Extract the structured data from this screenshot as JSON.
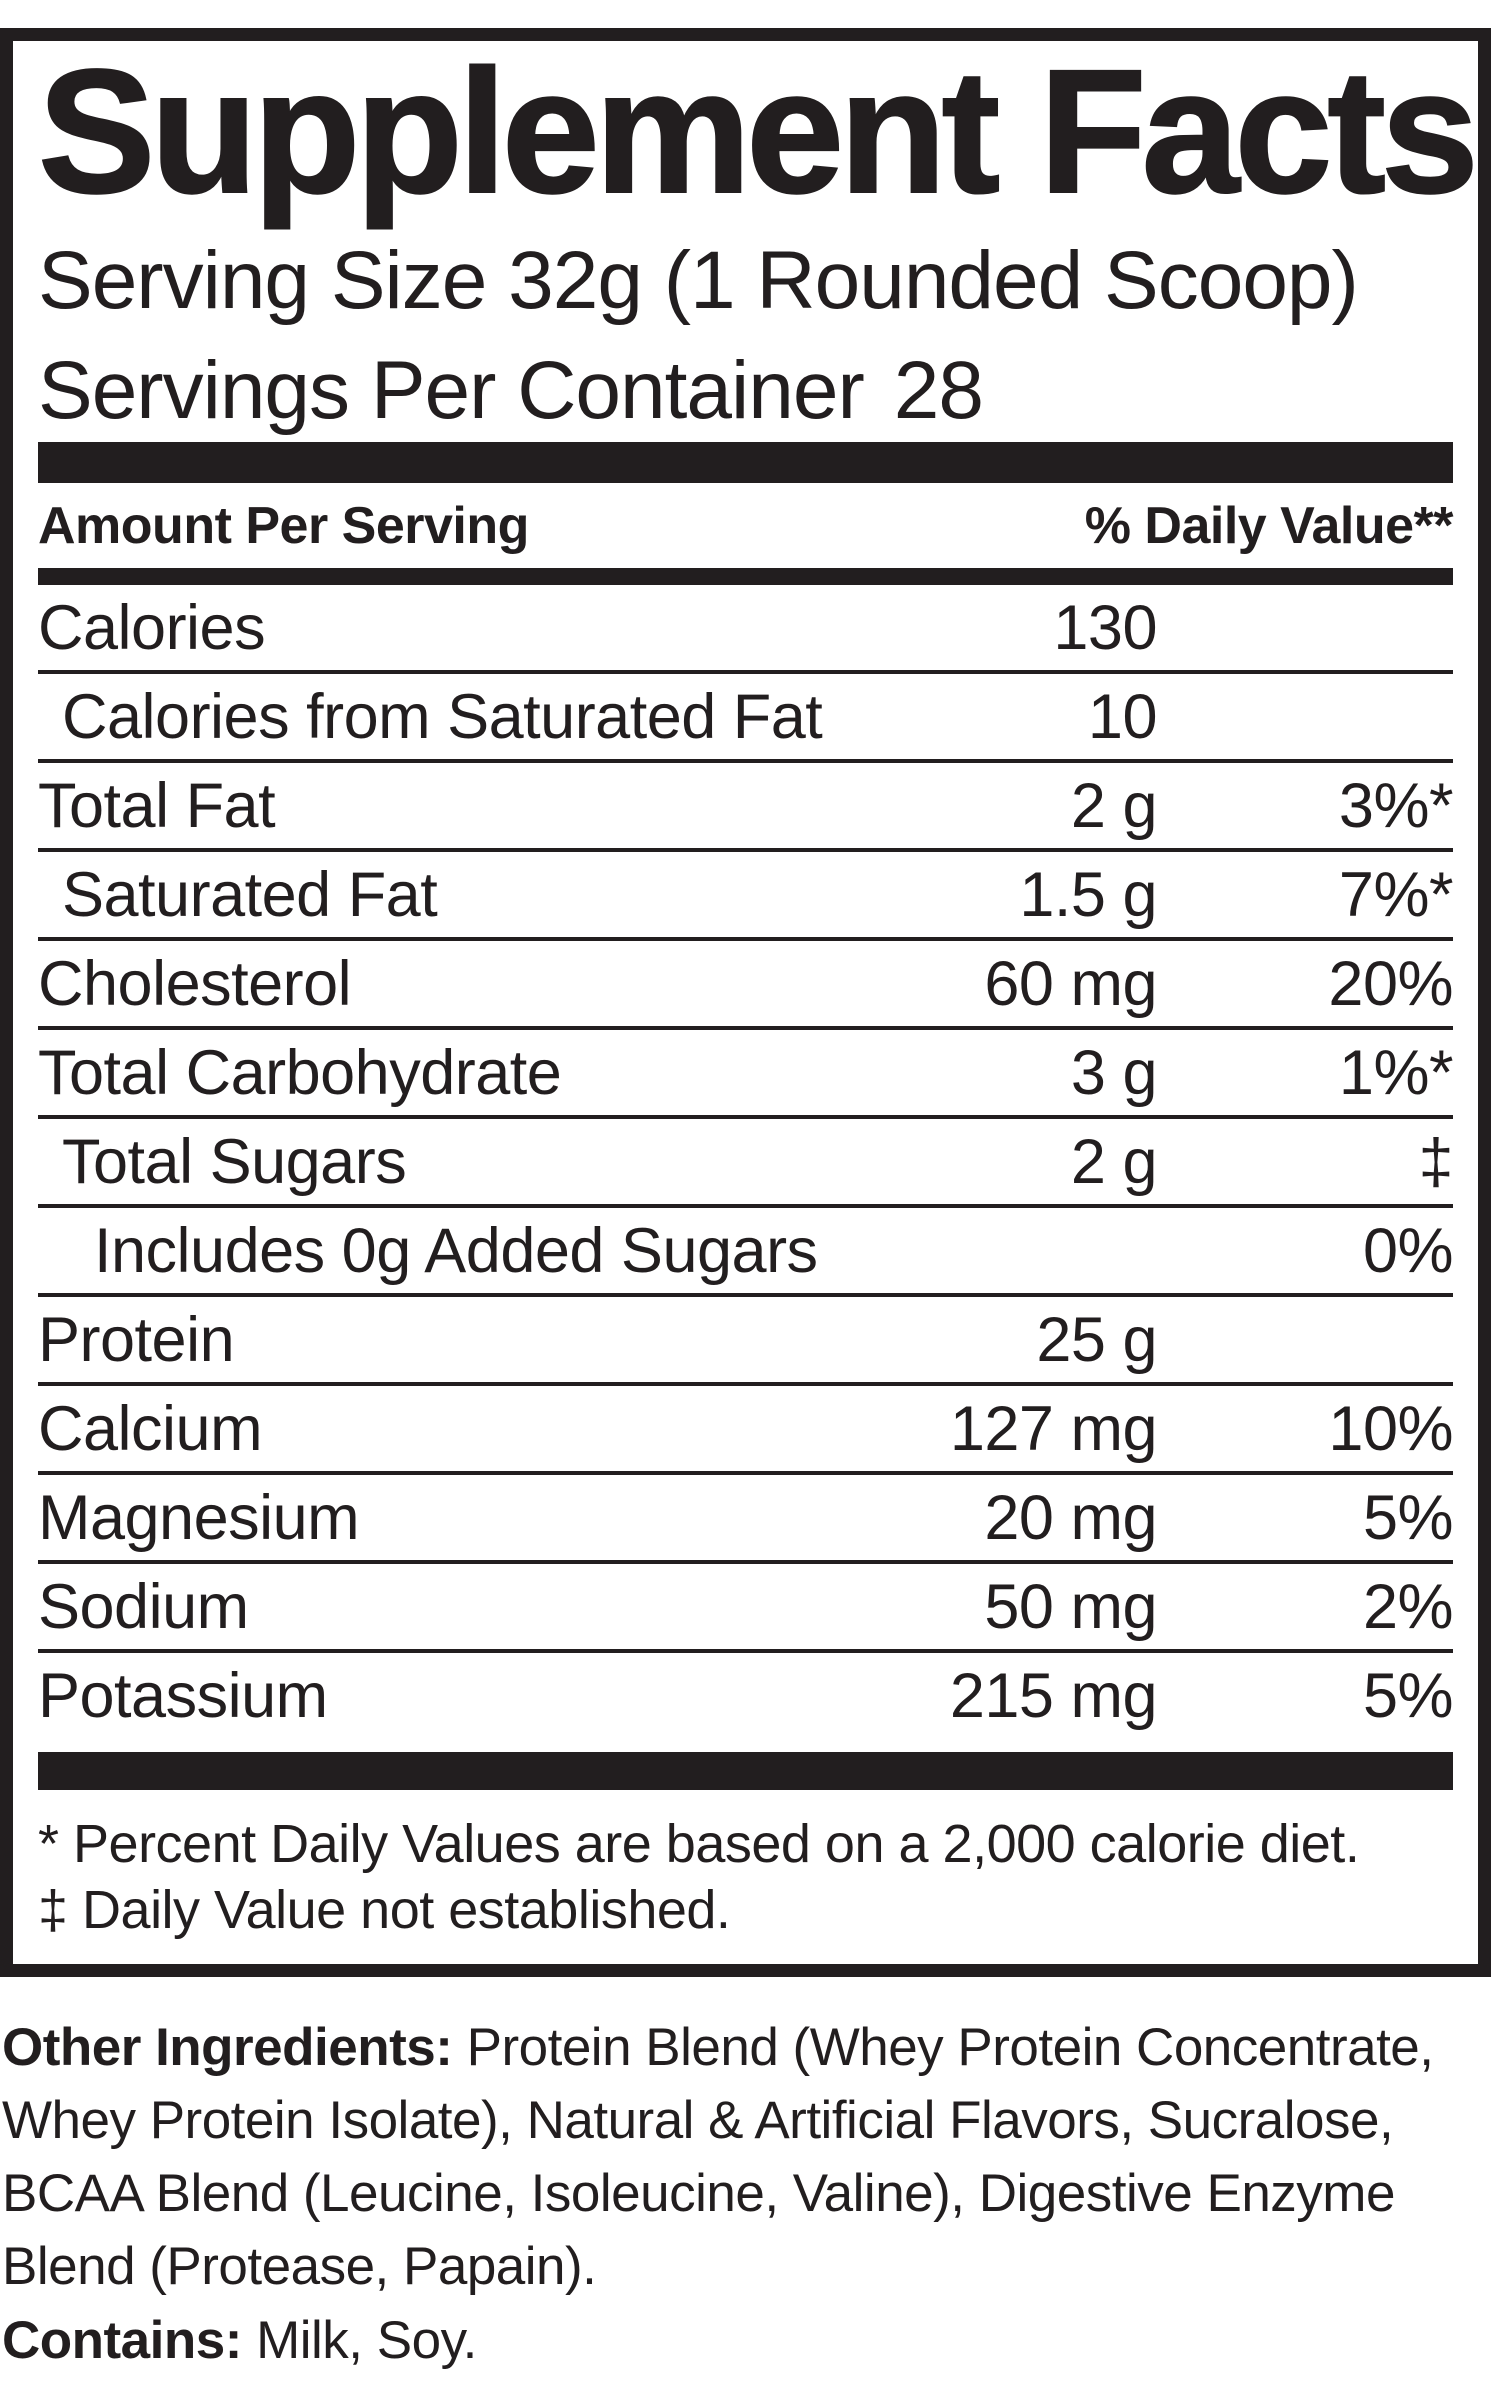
{
  "label": {
    "title": "Supplement Facts",
    "serving_size": "Serving Size 32g (1 Rounded Scoop)",
    "servings_per_container": {
      "label": "Servings Per Container",
      "value": "28"
    },
    "columns": {
      "amount_header": "Amount Per Serving",
      "daily_value_header": "% Daily Value**"
    },
    "rows": [
      {
        "name": "Calories",
        "amount": "130",
        "dv": "",
        "indent": 0
      },
      {
        "name": "Calories from Saturated Fat",
        "amount": "10",
        "dv": "",
        "indent": 1
      },
      {
        "name": "Total Fat",
        "amount": "2 g",
        "dv": "3%*",
        "indent": 0
      },
      {
        "name": "Saturated Fat",
        "amount": "1.5 g",
        "dv": "7%*",
        "indent": 1
      },
      {
        "name": "Cholesterol",
        "amount": "60 mg",
        "dv": "20%",
        "indent": 0
      },
      {
        "name": "Total Carbohydrate",
        "amount": "3 g",
        "dv": "1%*",
        "indent": 0
      },
      {
        "name": "Total Sugars",
        "amount": "2 g",
        "dv": "‡",
        "indent": 1
      },
      {
        "name": "Includes 0g Added Sugars",
        "amount": "",
        "dv": "0%",
        "indent": 2
      },
      {
        "name": "Protein",
        "amount": "25 g",
        "dv": "",
        "indent": 0
      },
      {
        "name": "Calcium",
        "amount": "127 mg",
        "dv": "10%",
        "indent": 0
      },
      {
        "name": "Magnesium",
        "amount": "20 mg",
        "dv": "5%",
        "indent": 0
      },
      {
        "name": "Sodium",
        "amount": "50 mg",
        "dv": "2%",
        "indent": 0
      },
      {
        "name": "Potassium",
        "amount": "215 mg",
        "dv": "5%",
        "indent": 0
      }
    ],
    "footnotes": [
      "* Percent Daily Values are based on a 2,000 calorie diet.",
      "‡ Daily Value not established."
    ]
  },
  "other_ingredients": {
    "label": "Other Ingredients:",
    "text": " Protein Blend (Whey Protein Concentrate, Whey Protein Isolate), Natural & Artificial Flavors, Sucralose, BCAA Blend (Leucine, Isoleucine, Valine), Digestive Enzyme Blend (Protease, Papain)."
  },
  "contains": {
    "label": "Contains:",
    "text": " Milk, Soy."
  },
  "colors": {
    "ink": "#221e1f",
    "background": "#ffffff"
  }
}
